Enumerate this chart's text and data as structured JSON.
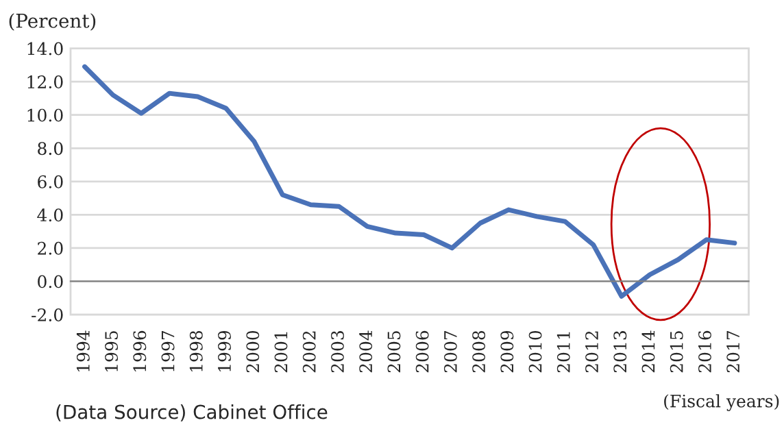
{
  "chart_data": {
    "type": "line",
    "categories": [
      "1994",
      "1995",
      "1996",
      "1997",
      "1998",
      "1999",
      "2000",
      "2001",
      "2002",
      "2003",
      "2004",
      "2005",
      "2006",
      "2007",
      "2008",
      "2009",
      "2010",
      "2011",
      "2012",
      "2013",
      "2014",
      "2015",
      "2016",
      "2017"
    ],
    "series": [
      {
        "color": "#4a72b8",
        "values": [
          12.9,
          11.2,
          10.1,
          11.3,
          11.1,
          10.4,
          8.4,
          5.2,
          4.6,
          4.5,
          3.3,
          2.9,
          2.8,
          2.0,
          3.5,
          4.3,
          3.9,
          3.6,
          2.2,
          -0.9,
          0.4,
          1.3,
          2.5,
          2.3
        ]
      }
    ],
    "ylabel": "(Percent)",
    "xlabel": "(Fiscal years)",
    "ylim": [
      -2,
      14
    ],
    "yticks": [
      {
        "value": -2,
        "label": "-2.0"
      },
      {
        "value": 0,
        "label": "0.0"
      },
      {
        "value": 2,
        "label": "2.0"
      },
      {
        "value": 4,
        "label": "4.0"
      },
      {
        "value": 6,
        "label": "6.0"
      },
      {
        "value": 8,
        "label": "8.0"
      },
      {
        "value": 10,
        "label": "10.0"
      },
      {
        "value": 12,
        "label": "12.0"
      },
      {
        "value": 14,
        "label": "14.0"
      }
    ],
    "grid": "y",
    "legend": false,
    "marker": "none",
    "line_style": "solid",
    "annotations": [
      "(Data Source) Cabinet Office"
    ]
  }
}
